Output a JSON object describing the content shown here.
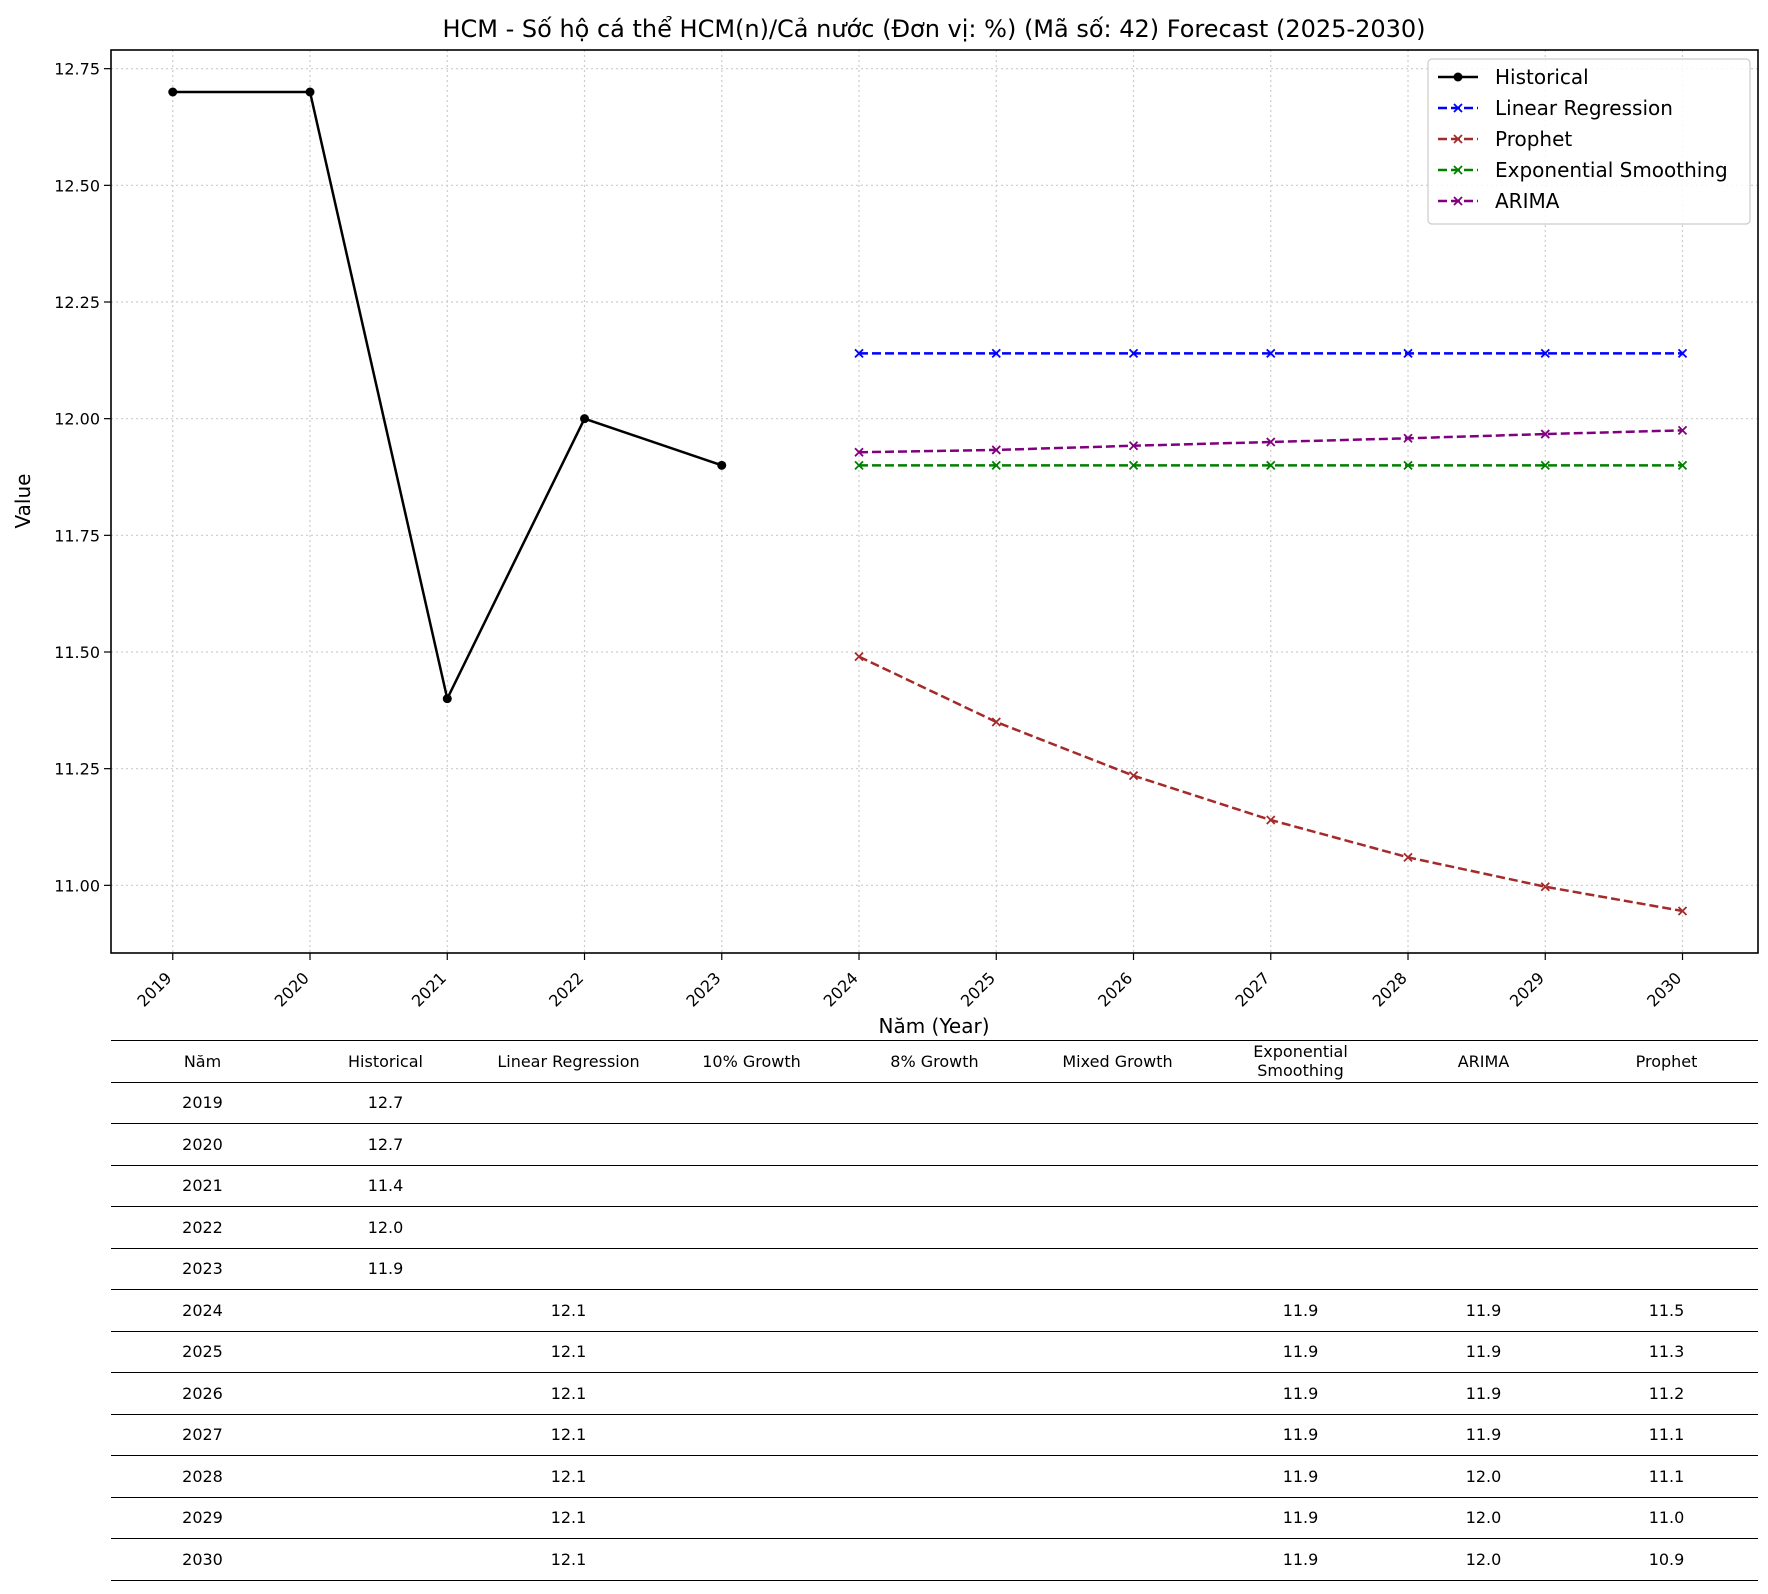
{
  "chart_data": {
    "type": "line",
    "title": "HCM - Số hộ cá thể HCM(n)/Cả nước (Đơn vị: %) (Mã số: 42) Forecast (2025-2030)",
    "xlabel": "Năm (Year)",
    "ylabel": "Value",
    "x_ticks": [
      "2019",
      "2020",
      "2021",
      "2022",
      "2023",
      "2024",
      "2025",
      "2026",
      "2027",
      "2028",
      "2029",
      "2030"
    ],
    "y_ticks": [
      "11.00",
      "11.25",
      "11.50",
      "11.75",
      "12.00",
      "12.25",
      "12.50",
      "12.75"
    ],
    "xlim": [
      2018.55,
      2030.55
    ],
    "ylim": [
      10.855,
      12.79
    ],
    "grid": true,
    "legend_position": "top-right",
    "series": [
      {
        "name": "Historical",
        "color": "#000000",
        "style": "solid",
        "marker": "circle",
        "x": [
          2019,
          2020,
          2021,
          2022,
          2023
        ],
        "y": [
          12.7,
          12.7,
          11.4,
          12.0,
          11.9
        ]
      },
      {
        "name": "Linear Regression",
        "color": "#0000ff",
        "style": "dashed",
        "marker": "x",
        "x": [
          2024,
          2025,
          2026,
          2027,
          2028,
          2029,
          2030
        ],
        "y": [
          12.14,
          12.14,
          12.14,
          12.14,
          12.14,
          12.14,
          12.14
        ]
      },
      {
        "name": "Prophet",
        "color": "#a52a2a",
        "style": "dashed",
        "marker": "x",
        "x": [
          2024,
          2025,
          2026,
          2027,
          2028,
          2029,
          2030
        ],
        "y": [
          11.49,
          11.35,
          11.235,
          11.14,
          11.06,
          10.997,
          10.945
        ]
      },
      {
        "name": "Exponential Smoothing",
        "color": "#008000",
        "style": "dashed",
        "marker": "x",
        "x": [
          2024,
          2025,
          2026,
          2027,
          2028,
          2029,
          2030
        ],
        "y": [
          11.9,
          11.9,
          11.9,
          11.9,
          11.9,
          11.9,
          11.9
        ]
      },
      {
        "name": "ARIMA",
        "color": "#800080",
        "style": "dashed",
        "marker": "x",
        "x": [
          2024,
          2025,
          2026,
          2027,
          2028,
          2029,
          2030
        ],
        "y": [
          11.928,
          11.933,
          11.942,
          11.95,
          11.958,
          11.967,
          11.975
        ]
      }
    ]
  },
  "table": {
    "headers": [
      "Năm",
      "Historical",
      "Linear Regression",
      "10% Growth",
      "8% Growth",
      "Mixed Growth",
      "Exponential Smoothing",
      "ARIMA",
      "Prophet"
    ],
    "rows": [
      [
        "2019",
        "12.7",
        "",
        "",
        "",
        "",
        "",
        "",
        ""
      ],
      [
        "2020",
        "12.7",
        "",
        "",
        "",
        "",
        "",
        "",
        ""
      ],
      [
        "2021",
        "11.4",
        "",
        "",
        "",
        "",
        "",
        "",
        ""
      ],
      [
        "2022",
        "12.0",
        "",
        "",
        "",
        "",
        "",
        "",
        ""
      ],
      [
        "2023",
        "11.9",
        "",
        "",
        "",
        "",
        "",
        "",
        ""
      ],
      [
        "2024",
        "",
        "12.1",
        "",
        "",
        "",
        "11.9",
        "11.9",
        "11.5"
      ],
      [
        "2025",
        "",
        "12.1",
        "",
        "",
        "",
        "11.9",
        "11.9",
        "11.3"
      ],
      [
        "2026",
        "",
        "12.1",
        "",
        "",
        "",
        "11.9",
        "11.9",
        "11.2"
      ],
      [
        "2027",
        "",
        "12.1",
        "",
        "",
        "",
        "11.9",
        "11.9",
        "11.1"
      ],
      [
        "2028",
        "",
        "12.1",
        "",
        "",
        "",
        "11.9",
        "12.0",
        "11.1"
      ],
      [
        "2029",
        "",
        "12.1",
        "",
        "",
        "",
        "11.9",
        "12.0",
        "11.0"
      ],
      [
        "2030",
        "",
        "12.1",
        "",
        "",
        "",
        "11.9",
        "12.0",
        "10.9"
      ]
    ]
  }
}
